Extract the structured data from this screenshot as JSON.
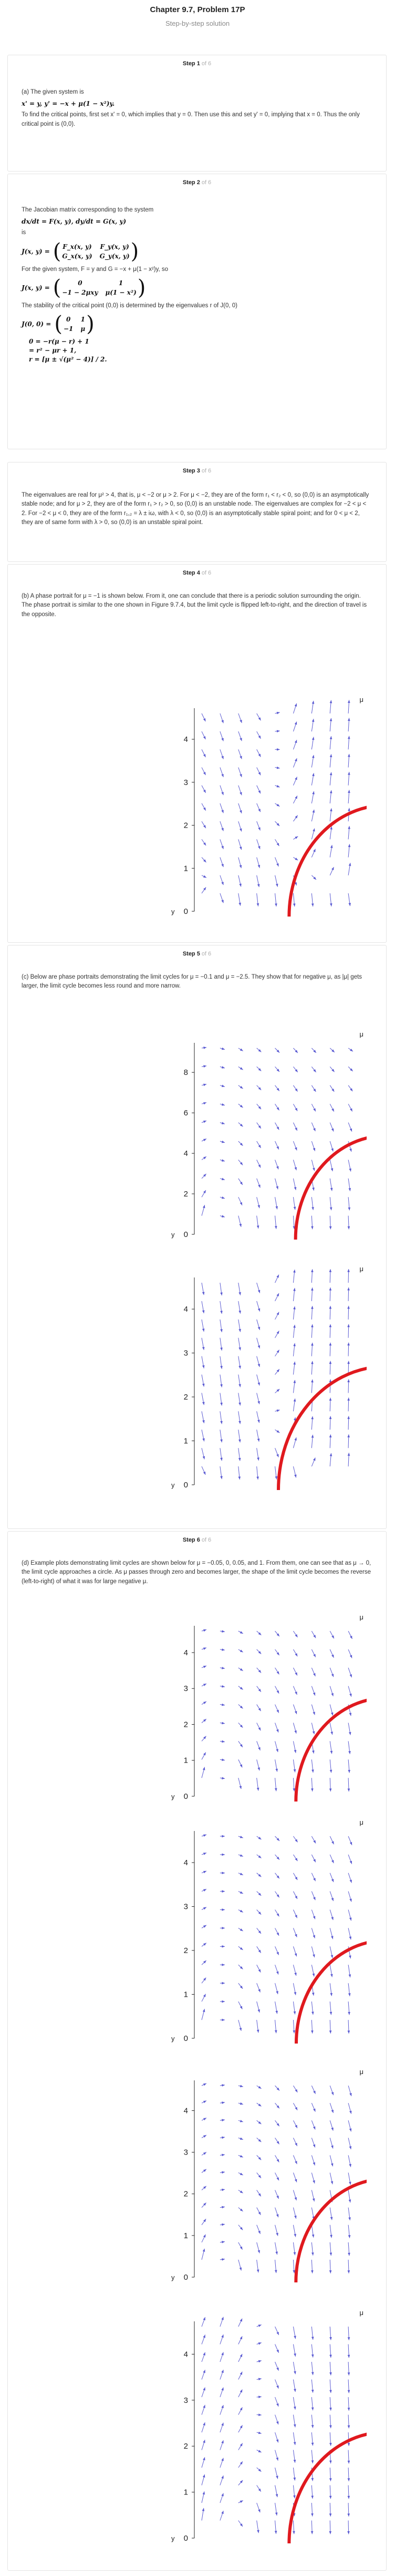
{
  "header": {
    "title": "Chapter 9.7, Problem 17P",
    "subtitle": "Step-by-step solution"
  },
  "steps": [
    {
      "label": "Step 1",
      "of": "of 6"
    },
    {
      "label": "Step 2",
      "of": "of 6"
    },
    {
      "label": "Step 3",
      "of": "of 6"
    },
    {
      "label": "Step 4",
      "of": "of 6"
    },
    {
      "label": "Step 5",
      "of": "of 6"
    },
    {
      "label": "Step 6",
      "of": "of 6"
    }
  ],
  "step1": {
    "intro": "(a) The given system is",
    "system": "x' = y,   y' = −x + μ(1 − x²)y.",
    "body": "To find the critical points, first set  x' = 0,  which implies that  y = 0.  Then use this and set  y' = 0,  implying that  x = 0.  Thus the only critical point is (0,0)."
  },
  "step2": {
    "intro": "The Jacobian matrix corresponding to the system",
    "system": "dx/dt = F(x, y),   dy/dt = G(x, y)",
    "is": "is",
    "jlabel": "J(x, y) =",
    "j": [
      "F_x(x, y)",
      "F_y(x, y)",
      "G_x(x, y)",
      "G_y(x, y)"
    ],
    "given": "For the given system,  F = y  and  G = −x + μ(1 − x²)y,  so",
    "j2": [
      "0",
      "1",
      "−1 − 2μxy",
      "μ(1 − x²)"
    ],
    "stab": "The stability of the critical point (0,0) is determined by the eigenvalues r  of  J(0, 0)",
    "j0label": "J(0, 0) =",
    "j0": [
      "0",
      "1",
      "−1",
      "μ"
    ],
    "eq1": "0 = −r(μ − r) + 1",
    "eq2": "= r² − μr + 1,",
    "eq3": "r = [μ ± √(μ² − 4)] / 2."
  },
  "step3": {
    "body": "The eigenvalues are real for  μ² > 4,  that is,  μ < −2  or  μ > 2.  For  μ < −2,  they are of the form  r₁ < r₂ < 0,  so (0,0) is an  asymptotically stable node;  and for  μ > 2,  they are of the form  r₁ > r₂ > 0,  so (0,0) is an  unstable node.  The eigenvalues are complex for  −2 < μ < 2.  For  −2 < μ < 0,  they are of the form  r₁,₂ = λ ± iω,  with  λ < 0,  so (0,0) is an  asymptotically stable spiral point;  and for  0 < μ < 2,  they are of same form with  λ > 0,  so (0,0) is an  unstable spiral point."
  },
  "step4": {
    "body": "(b) A phase portrait for  μ = −1  is shown below. From it, one can conclude that there is a periodic solution surrounding the origin. The phase portrait is similar to the one shown in Figure 9.7.4, but the limit cycle is flipped left-to-right, and the direction of travel is the opposite."
  },
  "step5": {
    "body": "(c) Below are phase portraits demonstrating the limit cycles for  μ = −0.1  and  μ = −2.5.  They show that for negative  μ,  as  |μ|  gets larger, the limit cycle becomes less round and more narrow."
  },
  "step6": {
    "body": "(d) Example plots demonstrating limit cycles are shown below for  μ = −0.05,  0, 0.05, and 1. From them, one can see that as  μ → 0,  the limit cycle approaches a circle. As  μ  passes through zero and becomes larger, the shape of the limit cycle becomes the reverse (left-to-right) of what it was for large negative  μ."
  },
  "plots": [
    {
      "corner": "μ",
      "axis": "y",
      "ticks": [
        "0",
        "1",
        "2",
        "3",
        "4"
      ],
      "mu": -1
    },
    {
      "corner": "μ",
      "axis": "y",
      "ticks": [
        "0",
        "2",
        "4",
        "6",
        "8"
      ],
      "mu": -0.1
    },
    {
      "corner": "μ",
      "axis": "y",
      "ticks": [
        "0",
        "1",
        "2",
        "3",
        "4"
      ],
      "mu": -2.5
    },
    {
      "corner": "μ",
      "axis": "y",
      "ticks": [
        "0",
        "1",
        "2",
        "3",
        "4"
      ],
      "mu": -0.05
    },
    {
      "corner": "μ",
      "axis": "y",
      "ticks": [
        "0",
        "1",
        "2",
        "3",
        "4"
      ],
      "mu": 0
    },
    {
      "corner": "μ",
      "axis": "y",
      "ticks": [
        "0",
        "1",
        "2",
        "3",
        "4"
      ],
      "mu": 0.05
    },
    {
      "corner": "μ",
      "axis": "y",
      "ticks": [
        "0",
        "1",
        "2",
        "3",
        "4"
      ],
      "mu": 1
    }
  ],
  "colors": {
    "arrow": "#5a5ad2",
    "cycle": "#e0191e",
    "text": "#222222",
    "muted": "#b0b0b0"
  }
}
